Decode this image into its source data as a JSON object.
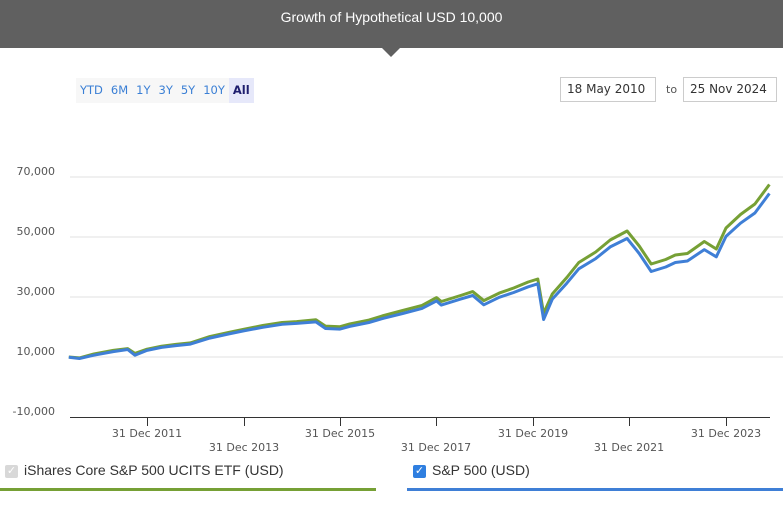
{
  "header": {
    "title": "Growth of Hypothetical USD 10,000"
  },
  "range_buttons": [
    {
      "label": "YTD",
      "active": false
    },
    {
      "label": "6M",
      "active": false
    },
    {
      "label": "1Y",
      "active": false
    },
    {
      "label": "3Y",
      "active": false
    },
    {
      "label": "5Y",
      "active": false
    },
    {
      "label": "10Y",
      "active": false
    },
    {
      "label": "All",
      "active": true
    }
  ],
  "date_range": {
    "from": "18 May 2010",
    "separator": "to",
    "to": "25 Nov 2024"
  },
  "legend": [
    {
      "label": "iShares Core S&P 500 UCITS ETF (USD)",
      "checked": true,
      "disabled": true,
      "color": "#76a035"
    },
    {
      "label": "S&P 500 (USD)",
      "checked": true,
      "disabled": false,
      "color": "#3f7fd6"
    }
  ],
  "icons": {
    "checkbox": "checkmark-icon",
    "pointer": "caret-down-icon"
  },
  "colors": {
    "header_bg": "#606060",
    "etf_line": "#76a035",
    "index_line": "#3f7fd6",
    "grid": "#e0e0e0",
    "axis": "#333333"
  },
  "chart_data": {
    "type": "line",
    "title": "Growth of Hypothetical USD 10,000",
    "xlabel": "",
    "ylabel": "",
    "ylim": [
      -10000,
      70000
    ],
    "yticks": [
      "70,000",
      "50,000",
      "30,000",
      "10,000",
      "-10,000"
    ],
    "ytick_values": [
      70000,
      50000,
      30000,
      10000,
      -10000
    ],
    "xticks": [
      "31 Dec 2011",
      "31 Dec 2013",
      "31 Dec 2015",
      "31 Dec 2017",
      "31 Dec 2019",
      "31 Dec 2021",
      "31 Dec 2023"
    ],
    "grid": true,
    "legend_position": "bottom",
    "x": [
      2010.38,
      2010.6,
      2010.9,
      2011.3,
      2011.6,
      2011.75,
      2012.0,
      2012.3,
      2012.6,
      2012.9,
      2013.3,
      2013.7,
      2014.0,
      2014.4,
      2014.8,
      2015.1,
      2015.5,
      2015.7,
      2016.0,
      2016.2,
      2016.6,
      2016.9,
      2017.3,
      2017.7,
      2018.0,
      2018.1,
      2018.5,
      2018.75,
      2018.98,
      2019.3,
      2019.6,
      2019.9,
      2020.1,
      2020.22,
      2020.4,
      2020.7,
      2020.95,
      2021.3,
      2021.6,
      2021.95,
      2022.2,
      2022.45,
      2022.75,
      2022.95,
      2023.2,
      2023.55,
      2023.8,
      2024.0,
      2024.3,
      2024.6,
      2024.9
    ],
    "series": [
      {
        "name": "iShares Core S&P 500 UCITS ETF (USD)",
        "color": "#76a035",
        "values": [
          10000,
          9700,
          11000,
          12200,
          12800,
          11200,
          12600,
          13600,
          14200,
          14700,
          16800,
          18200,
          19200,
          20500,
          21500,
          21800,
          22400,
          20300,
          20100,
          21000,
          22300,
          23800,
          25500,
          27200,
          29800,
          28500,
          30500,
          31800,
          28800,
          31300,
          33000,
          35000,
          36000,
          24500,
          31000,
          36500,
          41500,
          45000,
          49000,
          52000,
          47000,
          41000,
          42500,
          44000,
          44500,
          48500,
          46000,
          53000,
          57500,
          61000,
          67500
        ]
      },
      {
        "name": "S&P 500 (USD)",
        "color": "#3f7fd6",
        "values": [
          9900,
          9500,
          10600,
          11800,
          12500,
          10600,
          12200,
          13200,
          13800,
          14300,
          16300,
          17700,
          18700,
          19900,
          20900,
          21200,
          21700,
          19500,
          19300,
          20200,
          21500,
          22900,
          24500,
          26200,
          28700,
          27300,
          29300,
          30500,
          27400,
          29900,
          31500,
          33400,
          34400,
          22500,
          29300,
          34600,
          39400,
          42800,
          46700,
          49500,
          44500,
          38500,
          40000,
          41500,
          42000,
          45800,
          43400,
          50200,
          54600,
          58000,
          64500
        ]
      }
    ]
  }
}
